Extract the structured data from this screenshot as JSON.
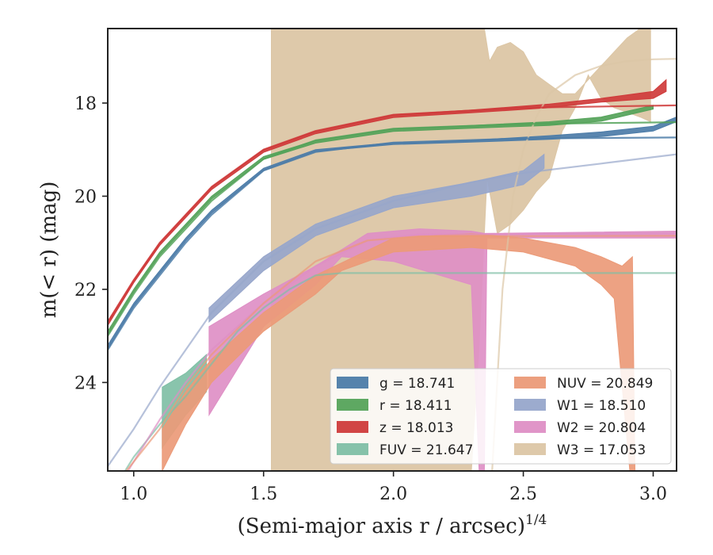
{
  "chart_data": {
    "type": "area",
    "xlabel": "(Semi-major axis r / arcsec)",
    "xlabel_sup": "1/4",
    "ylabel": "m(< r) (mag)",
    "xlim": [
      0.9,
      3.09
    ],
    "ylim": [
      25.9,
      16.4
    ],
    "y_inverted": true,
    "x_ticks": [
      1.0,
      1.5,
      2.0,
      2.5,
      3.0
    ],
    "x_tick_labels": [
      "1.0",
      "1.5",
      "2.0",
      "2.5",
      "3.0"
    ],
    "y_ticks": [
      18,
      20,
      22,
      24
    ],
    "y_tick_labels": [
      "18",
      "20",
      "22",
      "24"
    ],
    "grid": false,
    "legend_position": "lower-right",
    "legend_columns": 2,
    "series": [
      {
        "key": "g",
        "color": "#4c7ca8",
        "legend_label": "g = 18.741",
        "total_mag": 18.741,
        "band_upper": [
          [
            0.9,
            23.2
          ],
          [
            1.0,
            22.3
          ],
          [
            1.1,
            21.6
          ],
          [
            1.2,
            20.9
          ],
          [
            1.3,
            20.3
          ],
          [
            1.5,
            19.4
          ],
          [
            1.7,
            19.0
          ],
          [
            2.0,
            18.85
          ],
          [
            2.3,
            18.8
          ],
          [
            2.6,
            18.7
          ],
          [
            2.8,
            18.62
          ],
          [
            3.0,
            18.5
          ],
          [
            3.09,
            18.3
          ]
        ],
        "band_lower": [
          [
            3.09,
            18.4
          ],
          [
            3.0,
            18.6
          ],
          [
            2.8,
            18.72
          ],
          [
            2.6,
            18.78
          ],
          [
            2.3,
            18.84
          ],
          [
            2.0,
            18.89
          ],
          [
            1.7,
            19.04
          ],
          [
            1.5,
            19.45
          ],
          [
            1.3,
            20.36
          ],
          [
            1.2,
            20.96
          ],
          [
            1.1,
            21.66
          ],
          [
            1.0,
            22.36
          ],
          [
            0.9,
            23.28
          ]
        ],
        "model": [
          [
            0.9,
            23.3
          ],
          [
            1.0,
            22.4
          ],
          [
            1.1,
            21.7
          ],
          [
            1.2,
            21.0
          ],
          [
            1.3,
            20.4
          ],
          [
            1.5,
            19.45
          ],
          [
            1.7,
            19.05
          ],
          [
            2.0,
            18.85
          ],
          [
            2.5,
            18.76
          ],
          [
            3.09,
            18.74
          ]
        ]
      },
      {
        "key": "r",
        "color": "#55a35a",
        "legend_label": "r = 18.411",
        "total_mag": 18.411,
        "band_upper": [
          [
            0.9,
            22.9
          ],
          [
            1.0,
            22.0
          ],
          [
            1.1,
            21.2
          ],
          [
            1.2,
            20.6
          ],
          [
            1.3,
            20.0
          ],
          [
            1.5,
            19.15
          ],
          [
            1.7,
            18.8
          ],
          [
            2.0,
            18.55
          ],
          [
            2.3,
            18.48
          ],
          [
            2.6,
            18.4
          ],
          [
            2.8,
            18.3
          ],
          [
            3.0,
            18.05
          ]
        ],
        "band_lower": [
          [
            3.0,
            18.13
          ],
          [
            2.8,
            18.39
          ],
          [
            2.6,
            18.48
          ],
          [
            2.3,
            18.54
          ],
          [
            2.0,
            18.61
          ],
          [
            1.7,
            18.86
          ],
          [
            1.5,
            19.21
          ],
          [
            1.3,
            20.06
          ],
          [
            1.2,
            20.66
          ],
          [
            1.1,
            21.26
          ],
          [
            1.0,
            22.06
          ],
          [
            0.9,
            22.98
          ]
        ],
        "model": [
          [
            0.9,
            23.0
          ],
          [
            1.0,
            22.1
          ],
          [
            1.1,
            21.3
          ],
          [
            1.2,
            20.7
          ],
          [
            1.3,
            20.1
          ],
          [
            1.5,
            19.2
          ],
          [
            1.7,
            18.8
          ],
          [
            2.0,
            18.55
          ],
          [
            2.5,
            18.45
          ],
          [
            3.09,
            18.41
          ]
        ]
      },
      {
        "key": "z",
        "color": "#cf3b3b",
        "legend_label": "z = 18.013",
        "total_mag": 18.013,
        "band_upper": [
          [
            0.9,
            22.7
          ],
          [
            1.0,
            21.8
          ],
          [
            1.1,
            21.0
          ],
          [
            1.2,
            20.4
          ],
          [
            1.3,
            19.8
          ],
          [
            1.5,
            19.0
          ],
          [
            1.7,
            18.6
          ],
          [
            2.0,
            18.25
          ],
          [
            2.3,
            18.15
          ],
          [
            2.6,
            18.02
          ],
          [
            2.8,
            17.9
          ],
          [
            3.0,
            17.75
          ],
          [
            3.05,
            17.5
          ]
        ],
        "band_lower": [
          [
            3.05,
            17.75
          ],
          [
            3.0,
            17.9
          ],
          [
            2.8,
            17.98
          ],
          [
            2.6,
            18.1
          ],
          [
            2.3,
            18.21
          ],
          [
            2.0,
            18.31
          ],
          [
            1.7,
            18.66
          ],
          [
            1.5,
            19.06
          ],
          [
            1.3,
            19.86
          ],
          [
            1.2,
            20.46
          ],
          [
            1.1,
            21.06
          ],
          [
            1.0,
            21.86
          ],
          [
            0.9,
            22.78
          ]
        ],
        "model": [
          [
            0.9,
            22.7
          ],
          [
            1.0,
            21.8
          ],
          [
            1.1,
            21.0
          ],
          [
            1.2,
            20.4
          ],
          [
            1.3,
            19.8
          ],
          [
            1.5,
            19.0
          ],
          [
            1.7,
            18.6
          ],
          [
            2.0,
            18.25
          ],
          [
            2.5,
            18.1
          ],
          [
            3.09,
            18.05
          ]
        ]
      },
      {
        "key": "FUV",
        "color": "#7fbfa5",
        "legend_label": "FUV = 21.647",
        "total_mag": 21.647,
        "band_upper": [
          [
            1.11,
            24.1
          ],
          [
            1.2,
            23.8
          ],
          [
            1.28,
            23.4
          ]
        ],
        "band_lower": [
          [
            1.28,
            24.2
          ],
          [
            1.2,
            24.7
          ],
          [
            1.11,
            25.4
          ]
        ],
        "model": [
          [
            0.9,
            26.5
          ],
          [
            1.0,
            25.6
          ],
          [
            1.1,
            24.9
          ],
          [
            1.2,
            24.3
          ],
          [
            1.3,
            23.6
          ],
          [
            1.4,
            22.9
          ],
          [
            1.5,
            22.4
          ],
          [
            1.6,
            22.0
          ],
          [
            1.7,
            21.7
          ],
          [
            1.8,
            21.65
          ],
          [
            3.09,
            21.65
          ]
        ]
      },
      {
        "key": "NUV",
        "color": "#eb9a78",
        "legend_label": "NUV = 20.849",
        "total_mag": 20.849,
        "band_upper": [
          [
            1.11,
            25.0
          ],
          [
            1.2,
            24.2
          ],
          [
            1.3,
            23.5
          ],
          [
            1.5,
            22.5
          ],
          [
            1.7,
            21.7
          ],
          [
            2.0,
            20.9
          ],
          [
            2.3,
            20.8
          ],
          [
            2.5,
            20.9
          ],
          [
            2.7,
            21.1
          ],
          [
            2.8,
            21.3
          ],
          [
            2.88,
            21.5
          ],
          [
            2.92,
            21.3
          ],
          [
            2.93,
            25.9
          ]
        ],
        "band_lower": [
          [
            2.93,
            25.9
          ],
          [
            2.91,
            25.9
          ],
          [
            2.85,
            22.2
          ],
          [
            2.8,
            21.9
          ],
          [
            2.7,
            21.5
          ],
          [
            2.5,
            21.2
          ],
          [
            2.3,
            21.1
          ],
          [
            2.0,
            21.2
          ],
          [
            1.8,
            21.6
          ],
          [
            1.7,
            22.1
          ],
          [
            1.5,
            22.9
          ],
          [
            1.3,
            24.0
          ],
          [
            1.2,
            24.9
          ],
          [
            1.11,
            25.9
          ]
        ],
        "model": [
          [
            0.9,
            26.4
          ],
          [
            1.0,
            25.7
          ],
          [
            1.1,
            25.0
          ],
          [
            1.2,
            24.1
          ],
          [
            1.3,
            23.4
          ],
          [
            1.5,
            22.3
          ],
          [
            1.7,
            21.4
          ],
          [
            1.9,
            20.95
          ],
          [
            2.1,
            20.86
          ],
          [
            3.09,
            20.85
          ]
        ]
      },
      {
        "key": "W1",
        "color": "#97a6cb",
        "legend_label": "W1 = 18.510",
        "total_mag": 18.51,
        "band_upper": [
          [
            1.29,
            22.4
          ],
          [
            1.5,
            21.3
          ],
          [
            1.7,
            20.6
          ],
          [
            2.0,
            20.0
          ],
          [
            2.3,
            19.7
          ],
          [
            2.5,
            19.45
          ],
          [
            2.58,
            19.1
          ]
        ],
        "band_lower": [
          [
            2.58,
            19.4
          ],
          [
            2.5,
            19.75
          ],
          [
            2.3,
            20.0
          ],
          [
            2.0,
            20.25
          ],
          [
            1.7,
            20.85
          ],
          [
            1.5,
            21.6
          ],
          [
            1.29,
            22.7
          ]
        ],
        "model": [
          [
            0.9,
            25.8
          ],
          [
            1.0,
            25.0
          ],
          [
            1.1,
            24.1
          ],
          [
            1.2,
            23.3
          ],
          [
            1.3,
            22.5
          ],
          [
            1.5,
            21.4
          ],
          [
            1.7,
            20.7
          ],
          [
            2.0,
            20.1
          ],
          [
            2.3,
            19.7
          ],
          [
            2.5,
            19.5
          ],
          [
            2.8,
            19.3
          ],
          [
            3.09,
            19.1
          ]
        ]
      },
      {
        "key": "W2",
        "color": "#de8fc5",
        "legend_label": "W2 = 20.804",
        "total_mag": 20.804,
        "band_upper": [
          [
            1.29,
            22.8
          ],
          [
            1.5,
            22.1
          ],
          [
            1.7,
            21.5
          ],
          [
            1.9,
            20.8
          ],
          [
            2.1,
            20.7
          ],
          [
            2.3,
            20.75
          ],
          [
            2.35,
            20.8
          ],
          [
            3.09,
            20.75
          ]
        ],
        "band_lower": [
          [
            3.09,
            20.9
          ],
          [
            2.36,
            20.9
          ],
          [
            2.35,
            25.9
          ],
          [
            2.33,
            25.9
          ],
          [
            2.3,
            21.9
          ],
          [
            2.0,
            21.4
          ],
          [
            1.8,
            21.3
          ],
          [
            1.7,
            21.9
          ],
          [
            1.5,
            22.8
          ],
          [
            1.29,
            24.7
          ]
        ],
        "model": [
          [
            0.9,
            26.6
          ],
          [
            1.0,
            25.7
          ],
          [
            1.1,
            24.8
          ],
          [
            1.2,
            24.0
          ],
          [
            1.3,
            23.3
          ],
          [
            1.5,
            22.3
          ],
          [
            1.7,
            21.5
          ],
          [
            1.9,
            20.95
          ],
          [
            2.1,
            20.82
          ],
          [
            3.09,
            20.8
          ]
        ]
      },
      {
        "key": "W3",
        "color": "#dcc6a5",
        "legend_label": "W3 = 17.053",
        "total_mag": 17.053,
        "band_upper": [
          [
            1.53,
            16.4
          ],
          [
            2.35,
            16.4
          ],
          [
            2.37,
            17.1
          ],
          [
            2.4,
            16.8
          ],
          [
            2.45,
            16.7
          ],
          [
            2.5,
            16.9
          ],
          [
            2.55,
            17.4
          ],
          [
            2.6,
            17.6
          ],
          [
            2.65,
            17.8
          ],
          [
            2.7,
            17.8
          ],
          [
            2.75,
            17.5
          ],
          [
            2.8,
            17.2
          ],
          [
            2.85,
            16.9
          ],
          [
            2.9,
            16.6
          ],
          [
            2.95,
            16.4
          ],
          [
            2.99,
            16.4
          ]
        ],
        "band_lower": [
          [
            2.99,
            18.4
          ],
          [
            2.95,
            18.3
          ],
          [
            2.9,
            18.2
          ],
          [
            2.85,
            18.1
          ],
          [
            2.8,
            17.9
          ],
          [
            2.75,
            17.4
          ],
          [
            2.7,
            18.1
          ],
          [
            2.65,
            18.6
          ],
          [
            2.6,
            19.6
          ],
          [
            2.55,
            19.9
          ],
          [
            2.5,
            20.3
          ],
          [
            2.45,
            20.6
          ],
          [
            2.4,
            20.8
          ],
          [
            2.36,
            19.6
          ],
          [
            2.33,
            23.2
          ],
          [
            2.3,
            25.9
          ],
          [
            1.53,
            25.9
          ]
        ],
        "model": [
          [
            2.38,
            25.9
          ],
          [
            2.42,
            22.0
          ],
          [
            2.46,
            20.0
          ],
          [
            2.5,
            19.0
          ],
          [
            2.55,
            18.3
          ],
          [
            2.6,
            17.8
          ],
          [
            2.7,
            17.4
          ],
          [
            2.8,
            17.2
          ],
          [
            2.9,
            17.1
          ],
          [
            3.0,
            17.06
          ],
          [
            3.09,
            17.05
          ]
        ]
      }
    ]
  }
}
